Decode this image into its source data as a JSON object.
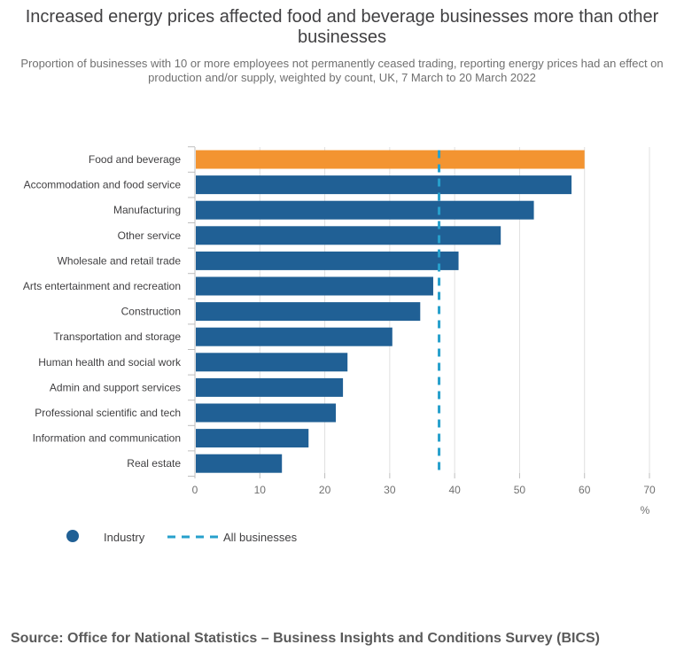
{
  "chart_data": {
    "type": "bar",
    "orientation": "horizontal",
    "title": "Increased energy prices affected food and beverage businesses more than other businesses",
    "subtitle": "Proportion of businesses with 10 or more employees not permanently ceased trading, reporting energy prices had an effect on production and/or supply, weighted by count, UK, 7 March to 20 March 2022",
    "categories": [
      "Food and beverage",
      "Accommodation and food service",
      "Manufacturing",
      "Other service",
      "Wholesale and retail trade",
      "Arts entertainment and recreation",
      "Construction",
      "Transportation and storage",
      "Human health and social work",
      "Admin and support services",
      "Professional scientific and tech",
      "Information and communication",
      "Real estate"
    ],
    "series": [
      {
        "name": "Industry",
        "values": [
          60,
          58,
          52.2,
          47.1,
          40.6,
          36.7,
          34.7,
          30.4,
          23.5,
          22.8,
          21.7,
          17.5,
          13.4
        ]
      }
    ],
    "reference_line": {
      "name": "All businesses",
      "value": 37.6
    },
    "highlight_category": "Food and beverage",
    "xunit": "%",
    "xlim": [
      0,
      70
    ],
    "xticks": [
      "0",
      "10",
      "20",
      "30",
      "40",
      "50",
      "60",
      "70"
    ],
    "grid": "vertical",
    "legend_position": "bottom-left",
    "colors": {
      "bar": "#206095",
      "highlight": "#f39431",
      "reference": "#27a0cc",
      "grid": "#e0e0e0",
      "axis": "#bebebe"
    }
  },
  "source": "Source: Office for National Statistics – Business Insights and Conditions Survey (BICS)"
}
